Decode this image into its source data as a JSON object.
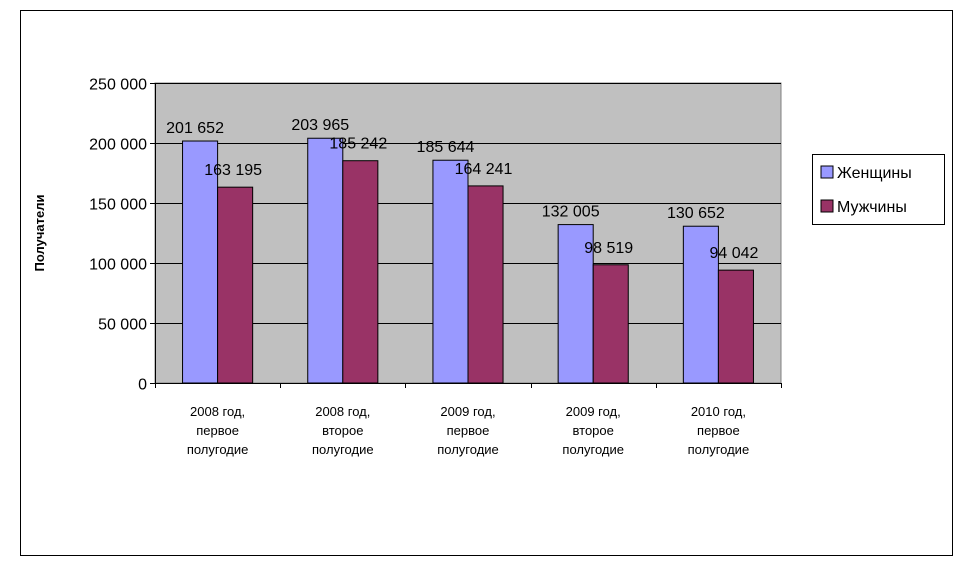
{
  "chart_data": {
    "type": "bar",
    "title": "",
    "xlabel": "",
    "ylabel": "Получатели",
    "ylim": [
      0,
      250000
    ],
    "yticks": [
      0,
      50000,
      100000,
      150000,
      200000,
      250000
    ],
    "ytick_labels": [
      "0",
      "50 000",
      "100 000",
      "150 000",
      "200 000",
      "250 000"
    ],
    "categories": [
      [
        "2008 год,",
        "первое",
        "полугодие"
      ],
      [
        "2008 год,",
        "второе",
        "полугодие"
      ],
      [
        "2009 год,",
        "первое",
        "полугодие"
      ],
      [
        "2009 год,",
        "второе",
        "полугодие"
      ],
      [
        "2010 год,",
        "первое",
        "полугодие"
      ]
    ],
    "series": [
      {
        "name": "Женщины",
        "color": "#9999ff",
        "values": [
          201652,
          203965,
          185644,
          132005,
          130652
        ],
        "labels": [
          "201 652",
          "203 965",
          "185 644",
          "132 005",
          "130 652"
        ]
      },
      {
        "name": "Мужчины",
        "color": "#993366",
        "values": [
          163195,
          185242,
          164241,
          98519,
          94042
        ],
        "labels": [
          "163 195",
          "185 242",
          "164 241",
          "98 519",
          "94 042"
        ]
      }
    ],
    "grid": true,
    "plot_background": "#c0c0c0",
    "legend_position": "right"
  }
}
